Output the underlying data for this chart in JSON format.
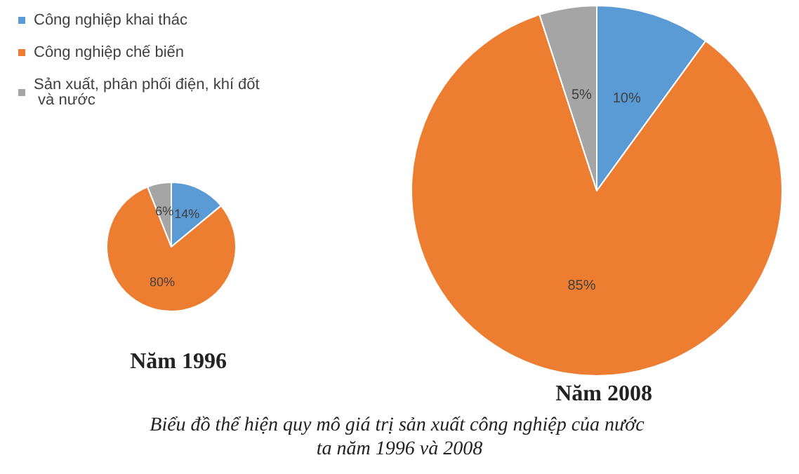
{
  "chart_data": [
    {
      "type": "pie",
      "title": "Năm 1996",
      "categories": [
        "Công nghiệp khai thác",
        "Công nghiệp chế biến",
        "Sản xuất, phân phối điện, khí đốt và nước"
      ],
      "values": [
        14,
        80,
        6
      ],
      "value_labels": [
        "14%",
        "80%",
        "6%"
      ],
      "colors": [
        "#5b9bd5",
        "#ed7d31",
        "#a5a5a5"
      ],
      "legend": "top left",
      "annotations": [
        "Biểu đồ thể hiện quy mô giá trị sản xuất công nghiệp của nước ta năm 1996 và 2008"
      ]
    },
    {
      "type": "pie",
      "title": "Năm 2008",
      "categories": [
        null,
        null,
        null
      ],
      "values": [
        10,
        85,
        5
      ],
      "value_labels": [
        "10%",
        "85%",
        "5%"
      ],
      "colors": [
        "#5b9bd5",
        "#ed7d31",
        "#a5a5a5"
      ]
    }
  ]
}
